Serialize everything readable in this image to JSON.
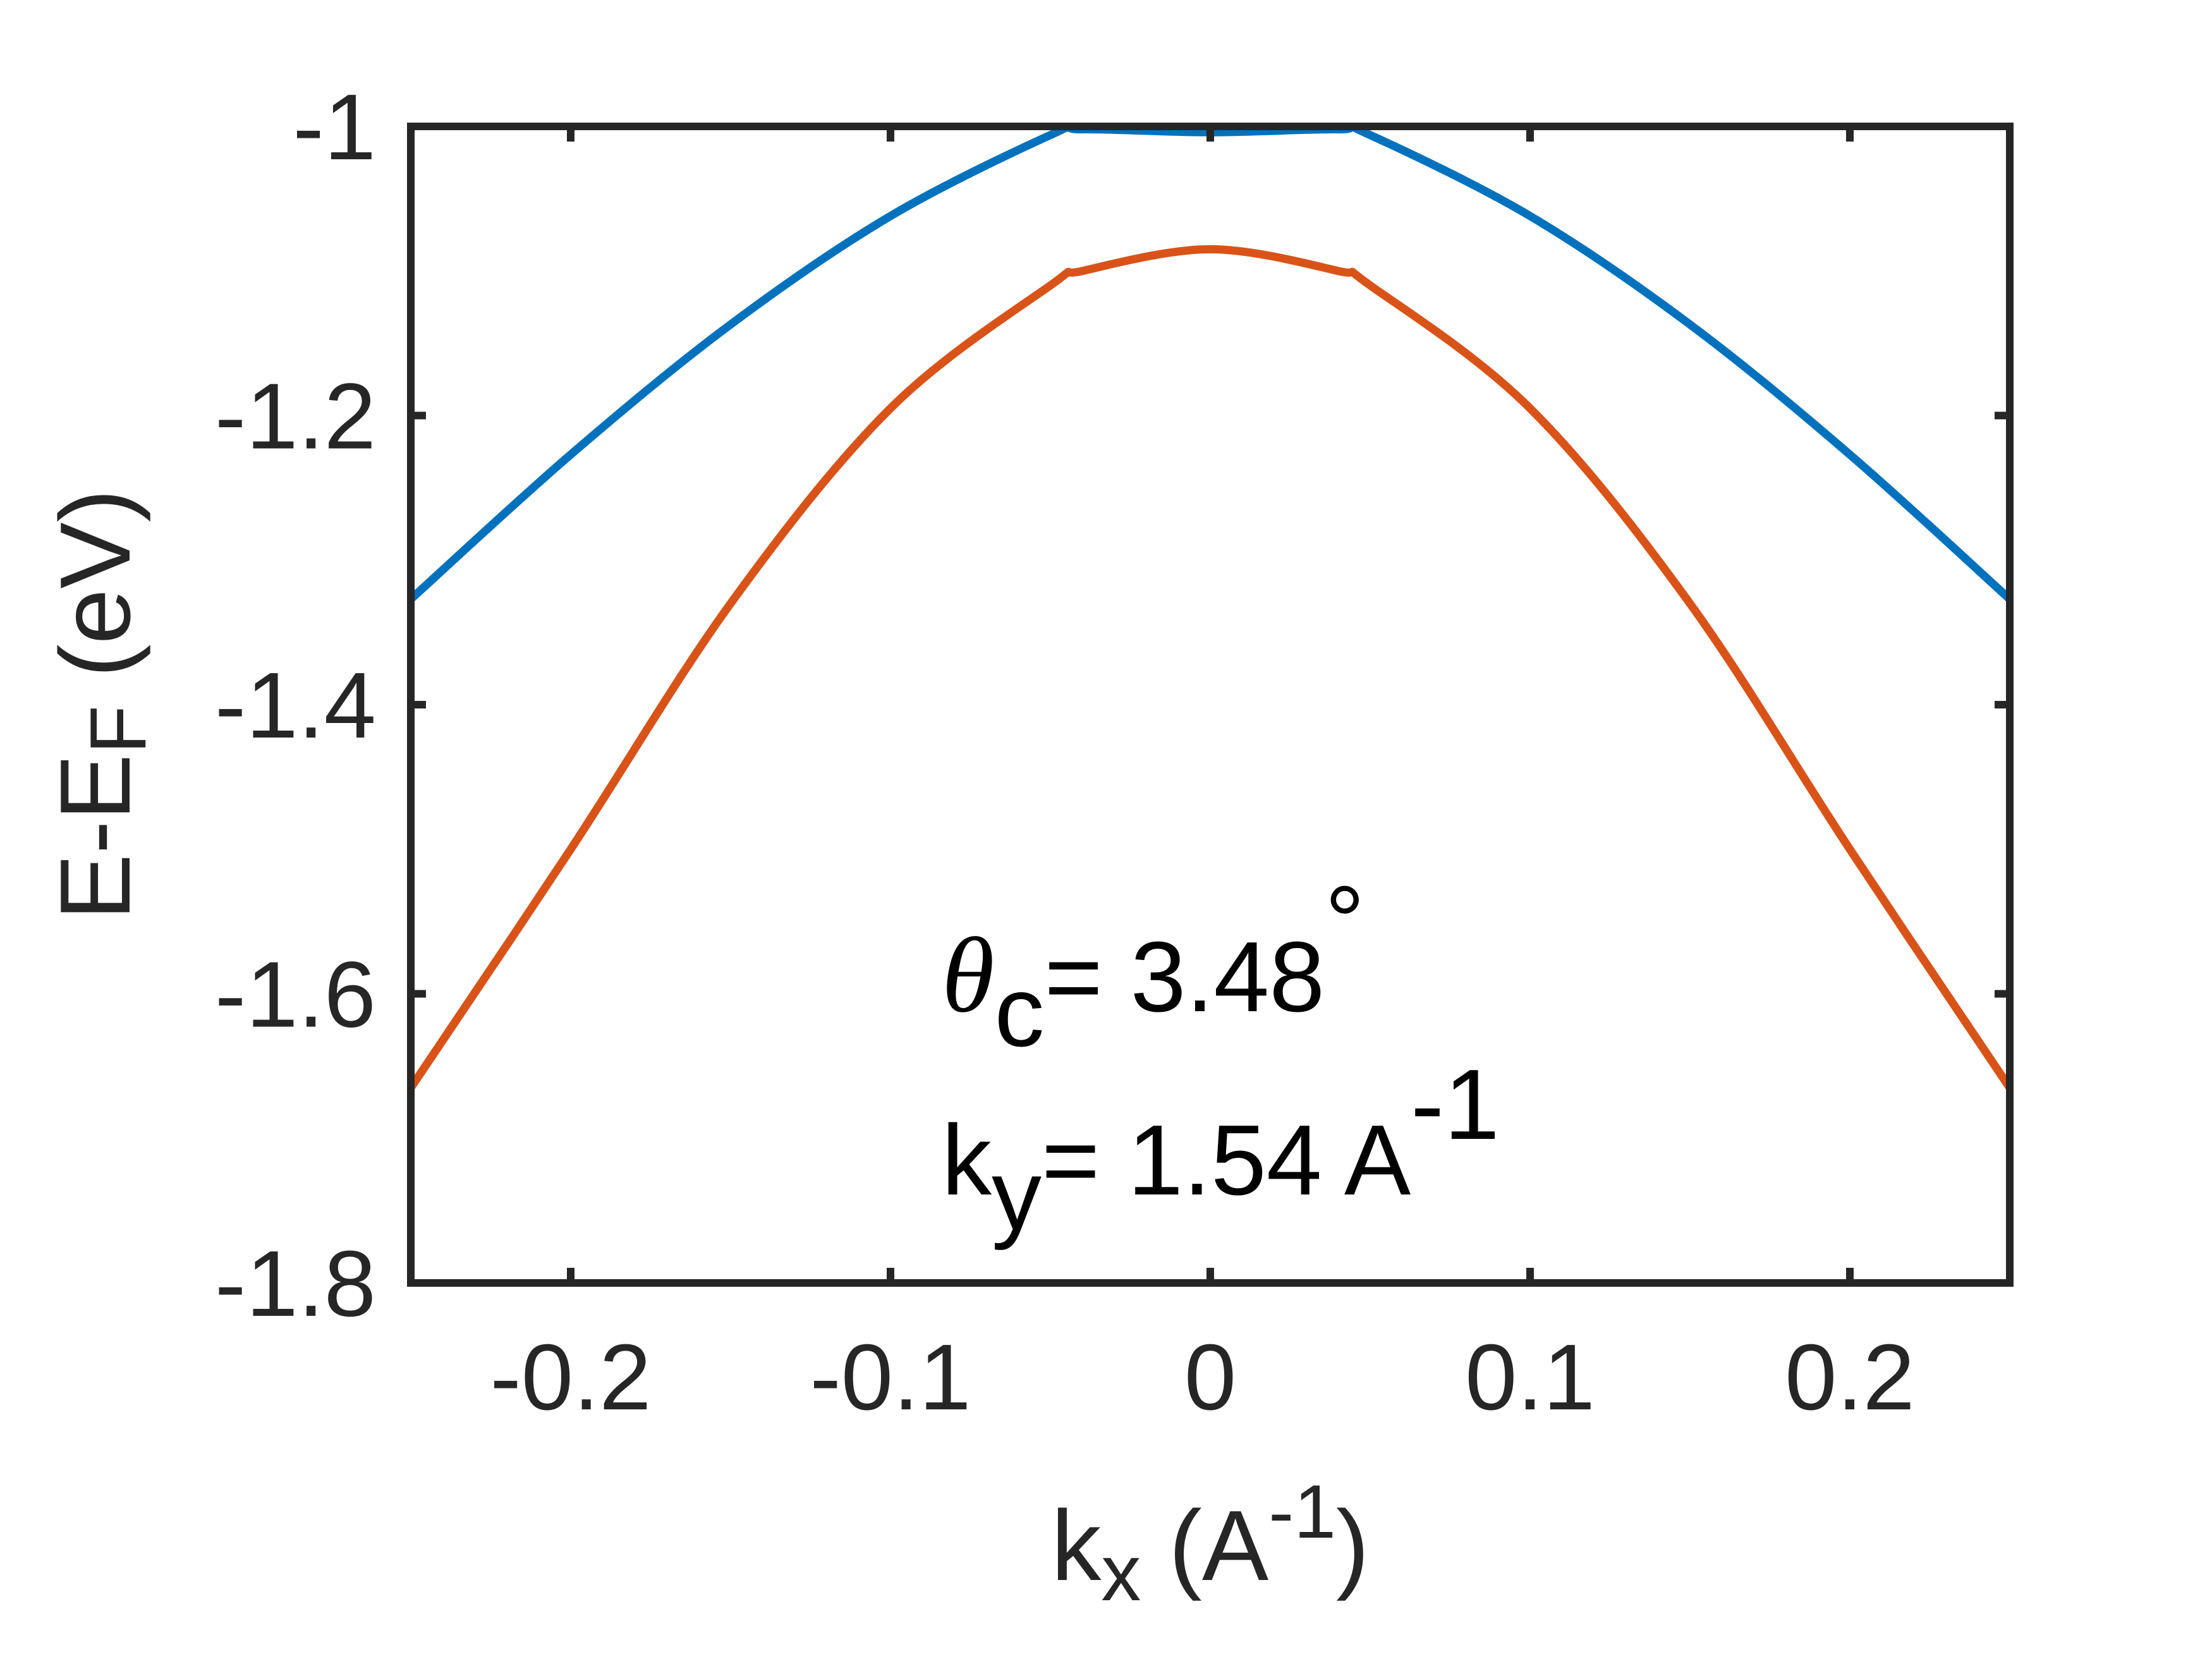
{
  "chart_data": {
    "type": "line",
    "xlabel": {
      "main": "k",
      "sub": "x",
      "rest": " (A",
      "sup": "-1",
      "close": ")"
    },
    "ylabel": {
      "main": "E-E",
      "sub": "F",
      "rest": " (eV)"
    },
    "xlim": [
      -0.25,
      0.25
    ],
    "ylim": [
      -1.8,
      -1.0
    ],
    "xticks": [
      -0.2,
      -0.1,
      0,
      0.1,
      0.2
    ],
    "xtick_labels": [
      "-0.2",
      "-0.1",
      "0",
      "0.1",
      "0.2"
    ],
    "yticks": [
      -1.0,
      -1.2,
      -1.4,
      -1.6,
      -1.8
    ],
    "ytick_labels": [
      "-1",
      "-1.2",
      "-1.4",
      "-1.6",
      "-1.8"
    ],
    "grid": false,
    "annotations": {
      "theta_symbol": "θ",
      "theta_sub": "c",
      "theta_value": "= 3.48",
      "theta_degree": "°",
      "ky_main": "k",
      "ky_sub": "y",
      "ky_value": "= 1.54 A",
      "ky_sup": "-1"
    },
    "x": [
      -0.25,
      -0.2,
      -0.15,
      -0.1,
      -0.05,
      -0.04,
      0,
      0.04,
      0.05,
      0.1,
      0.15,
      0.2,
      0.25
    ],
    "series": [
      {
        "color": "#0072BD",
        "values": [
          -1.327,
          -1.227,
          -1.137,
          -1.062,
          -1.006,
          -1.002,
          -1.004,
          -1.002,
          -1.006,
          -1.062,
          -1.137,
          -1.227,
          -1.327
        ]
      },
      {
        "color": "#D95319",
        "values": [
          -1.665,
          -1.5,
          -1.33,
          -1.195,
          -1.11,
          -1.1,
          -1.085,
          -1.1,
          -1.11,
          -1.195,
          -1.33,
          -1.5,
          -1.665
        ]
      }
    ]
  }
}
